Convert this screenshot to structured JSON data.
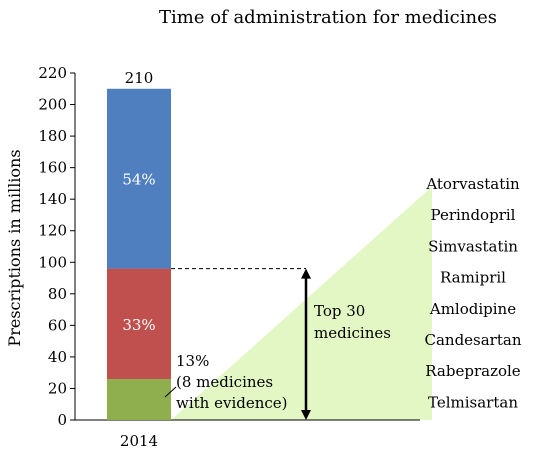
{
  "chart_data": {
    "type": "bar",
    "stacked": true,
    "title": "Time of administration  for medicines",
    "ylabel": "Prescriptions in millions",
    "xlabel": "",
    "ylim": [
      0,
      220
    ],
    "ytick_step": 20,
    "categories": [
      "2014"
    ],
    "total_label": "210",
    "series": [
      {
        "values": [
          26
        ],
        "label": "13%",
        "color": "#8faf4f"
      },
      {
        "values": [
          70
        ],
        "label": "33%",
        "color": "#c0504d"
      },
      {
        "values": [
          114
        ],
        "label": "54%",
        "color": "#4f7fbf"
      }
    ],
    "annotations": {
      "bottom_segment_note": [
        "13%",
        "(8 medicines",
        "with evidence)"
      ],
      "bracket_label": [
        "Top 30",
        "medicines"
      ],
      "bracket_from": 0,
      "bracket_to": 96,
      "wedge_color": "#e2f7c4"
    },
    "medicines": [
      "Atorvastatin",
      "Perindopril",
      "Simvastatin",
      "Ramipril",
      "Amlodipine",
      "Candesartan",
      "Rabeprazole",
      "Telmisartan"
    ]
  }
}
